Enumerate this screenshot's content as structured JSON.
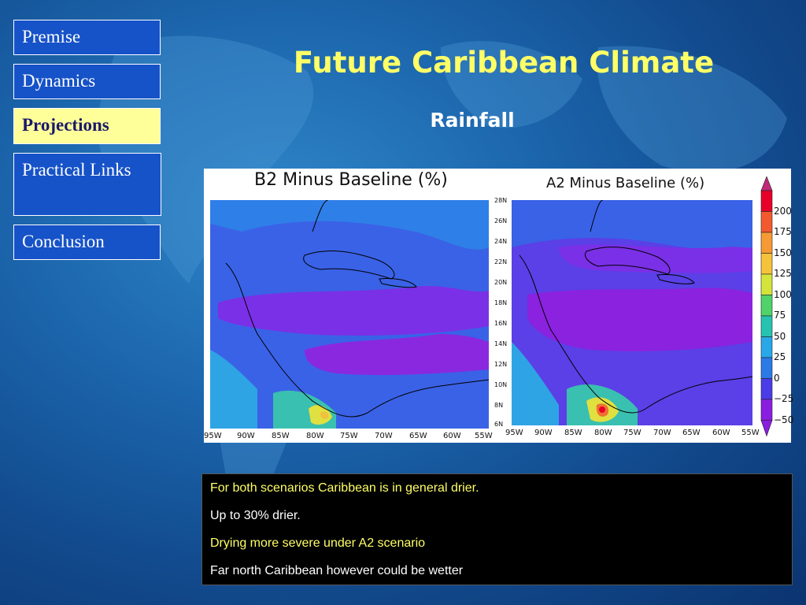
{
  "nav": {
    "items": [
      {
        "label": "Premise"
      },
      {
        "label": "Dynamics"
      },
      {
        "label": "Projections"
      },
      {
        "label": "Practical Links"
      },
      {
        "label": "Conclusion"
      }
    ]
  },
  "slide": {
    "title": "Future Caribbean Climate",
    "subtitle": "Rainfall"
  },
  "maps": {
    "b2": {
      "title": "B2 Minus Baseline (%)",
      "xticks": [
        "95W",
        "90W",
        "85W",
        "80W",
        "75W",
        "70W",
        "65W",
        "60W",
        "55W"
      ]
    },
    "a2": {
      "title": "A2 Minus Baseline (%)",
      "yticks": [
        "28N",
        "26N",
        "24N",
        "22N",
        "20N",
        "18N",
        "16N",
        "14N",
        "12N",
        "10N",
        "8N",
        "6N"
      ],
      "xticks": [
        "95W",
        "90W",
        "85W",
        "80W",
        "75W",
        "70W",
        "65W",
        "60W",
        "55W"
      ]
    },
    "legend": {
      "labels": [
        "200",
        "175",
        "150",
        "125",
        "100",
        "75",
        "50",
        "25",
        "0",
        "−25",
        "−50"
      ],
      "colors": [
        "#e8002a",
        "#f25a2e",
        "#f59a35",
        "#f5c23c",
        "#d4e43a",
        "#4fd36a",
        "#26c4b0",
        "#28a8e8",
        "#2c7ae8",
        "#4a3ce8",
        "#8a1ee0"
      ]
    }
  },
  "notes": {
    "lines": [
      "For both scenarios Caribbean is in general drier.",
      "Up to 30% drier.",
      "Drying more severe under A2 scenario",
      "Far north Caribbean however could be wetter"
    ]
  }
}
